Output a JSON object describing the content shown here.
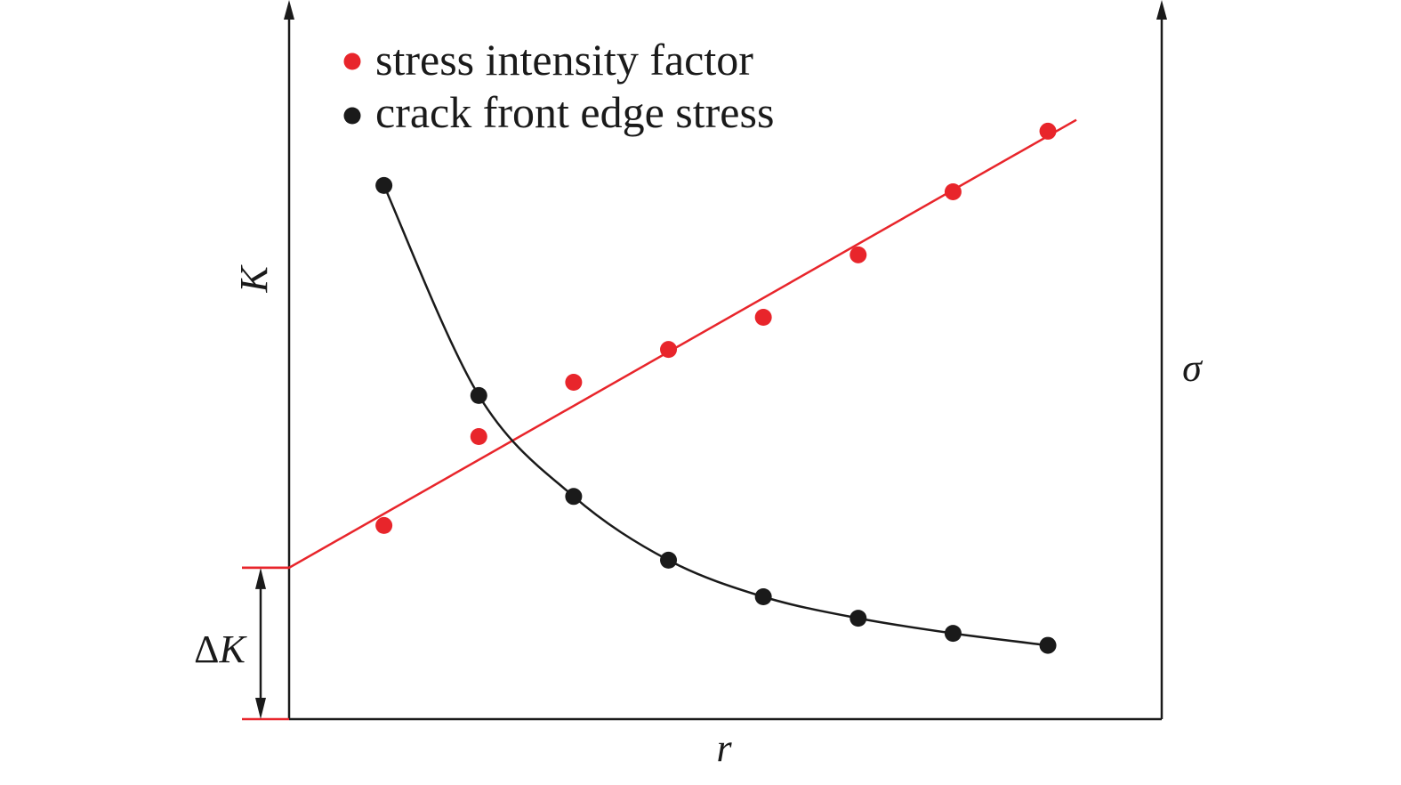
{
  "chart_data": {
    "type": "scatter",
    "title": "",
    "xlabel": "r",
    "ylabel_left": "K",
    "ylabel_right": "σ",
    "annotation": "ΔK",
    "annotation_prefix": "Δ",
    "annotation_var": "K",
    "xlim": [
      0,
      9.2
    ],
    "ylim": [
      0,
      11.4
    ],
    "grid": false,
    "legend_position": "top-left",
    "series": [
      {
        "name": "stress intensity factor",
        "color": "#e8252b",
        "marker": "circle",
        "x": [
          1,
          2,
          3,
          4,
          5,
          6,
          7,
          8
        ],
        "y": [
          3.07,
          4.48,
          5.34,
          5.86,
          6.37,
          7.36,
          8.36,
          9.32
        ],
        "fit_line": {
          "x": [
            0,
            8.3
          ],
          "y": [
            2.4,
            9.5
          ]
        }
      },
      {
        "name": "crack front edge stress",
        "color": "#1a1a1a",
        "marker": "circle",
        "x": [
          1,
          2,
          3,
          4,
          5,
          6,
          7,
          8
        ],
        "y": [
          8.46,
          5.13,
          3.53,
          2.52,
          1.94,
          1.6,
          1.36,
          1.17
        ],
        "fit_curve": true
      }
    ],
    "delta_k": {
      "value": 2.4,
      "color": "#e8252b"
    }
  }
}
